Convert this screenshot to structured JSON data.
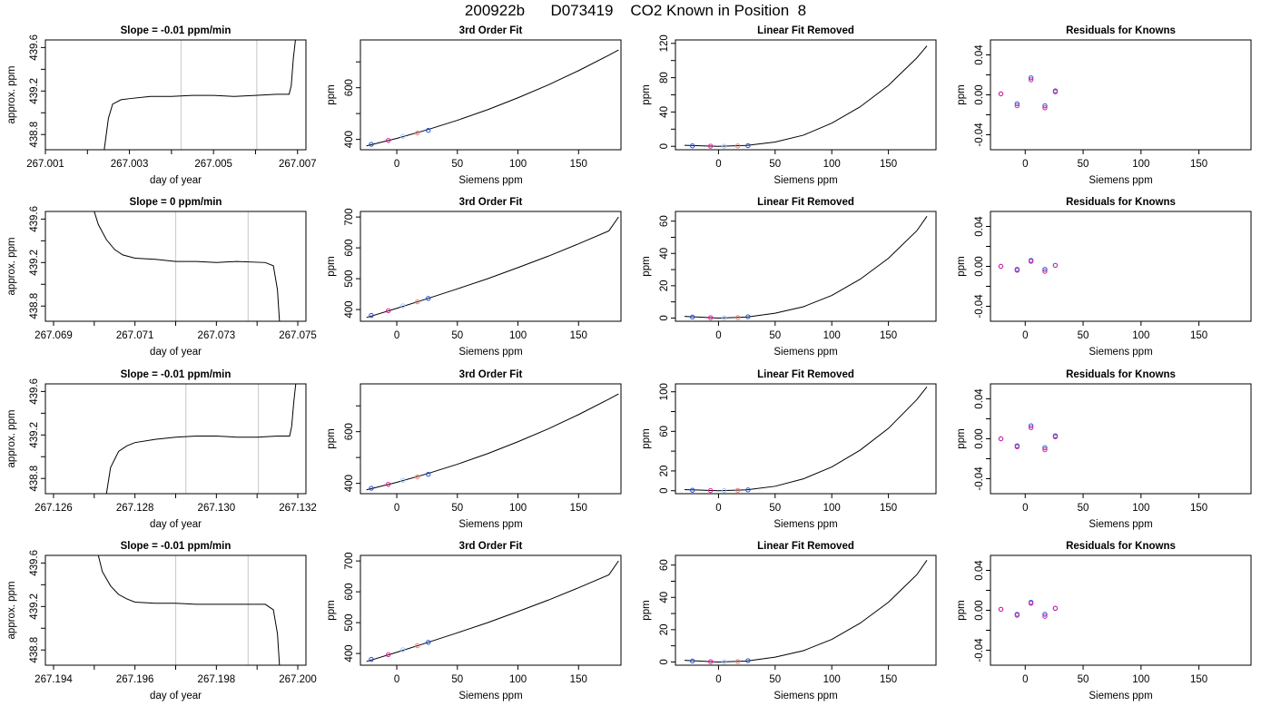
{
  "figure_title": "200922b      D073419    CO2 Known in Position  8",
  "colors": {
    "trace": "#000000",
    "window_line": "#cfcfcf",
    "point_blue": "#1f4fd8",
    "point_magenta": "#e0209a",
    "point_light": "#9ec8ff",
    "point_salmon": "#f08070"
  },
  "chart_data": [
    {
      "type": "line",
      "row": 1,
      "col": 1,
      "title": "Slope =  -0.01  ppm/min",
      "xlabel": "day of year",
      "ylabel": "approx. ppm",
      "xlim": [
        267.001,
        267.0072
      ],
      "ylim": [
        438.66,
        439.67
      ],
      "xticks": [
        267.001,
        267.002,
        267.003,
        267.004,
        267.005,
        267.006,
        267.007
      ],
      "xticklabels": [
        "267.001",
        "",
        "267.003",
        "",
        "267.005",
        "",
        "267.007"
      ],
      "yticks": [
        438.8,
        439.0,
        439.2,
        439.4,
        439.6
      ],
      "yticklabels": [
        "438.8",
        "",
        "439.2",
        "",
        "439.6"
      ],
      "vlines": [
        267.00423,
        267.00603
      ],
      "x": [
        267.0024,
        267.0025,
        267.0026,
        267.0028,
        267.003,
        267.0035,
        267.004,
        267.0045,
        267.005,
        267.0055,
        267.006,
        267.0065,
        267.0068,
        267.00685,
        267.0069,
        267.00695
      ],
      "y": [
        438.66,
        438.95,
        439.08,
        439.12,
        439.13,
        439.15,
        439.15,
        439.16,
        439.16,
        439.15,
        439.16,
        439.17,
        439.17,
        439.25,
        439.5,
        439.67
      ]
    },
    {
      "type": "line",
      "row": 1,
      "col": 2,
      "title": "3rd Order Fit",
      "xlabel": "Siemens ppm",
      "ylabel": "ppm",
      "xlim": [
        -30,
        185
      ],
      "ylim": [
        360,
        785
      ],
      "xticks": [
        0,
        50,
        100,
        150
      ],
      "xticklabels": [
        "0",
        "50",
        "100",
        "150"
      ],
      "yticks": [
        400,
        500,
        600,
        700
      ],
      "yticklabels": [
        "400",
        "",
        "600",
        ""
      ],
      "curve": {
        "x": [
          -25,
          0,
          25,
          50,
          75,
          100,
          125,
          150,
          175,
          183
        ],
        "y": [
          375,
          404,
          437,
          474,
          515,
          561,
          611,
          666,
          726,
          746
        ]
      },
      "points": {
        "x": [
          -21,
          -7,
          5,
          17,
          26
        ],
        "y": [
          381,
          396,
          412,
          425,
          435
        ]
      }
    },
    {
      "type": "line",
      "row": 1,
      "col": 3,
      "title": "Linear Fit Removed",
      "xlabel": "Siemens ppm",
      "ylabel": "ppm",
      "xlim": [
        -38,
        192
      ],
      "ylim": [
        -4,
        124
      ],
      "xticks": [
        0,
        50,
        100,
        150
      ],
      "xticklabels": [
        "0",
        "50",
        "100",
        "150"
      ],
      "yticks": [
        0,
        20,
        40,
        60,
        80,
        100,
        120
      ],
      "yticklabels": [
        "0",
        "",
        "40",
        "",
        "80",
        "",
        "120"
      ],
      "curve": {
        "x": [
          -30,
          0,
          25,
          50,
          75,
          100,
          125,
          150,
          175,
          184
        ],
        "y": [
          1.2,
          0,
          1,
          5,
          13,
          27,
          46,
          71,
          103,
          117
        ]
      },
      "points": {
        "x": [
          -23,
          -7,
          5,
          17,
          26
        ],
        "y": [
          0.5,
          0.2,
          0.1,
          0.4,
          0.8
        ]
      }
    },
    {
      "type": "scatter",
      "row": 1,
      "col": 4,
      "title": "Residuals for Knowns",
      "xlabel": "Siemens ppm",
      "ylabel": "ppm",
      "xlim": [
        -30,
        195
      ],
      "ylim": [
        -0.055,
        0.055
      ],
      "xticks": [
        0,
        50,
        100,
        150
      ],
      "xticklabels": [
        "0",
        "50",
        "100",
        "150"
      ],
      "yticks": [
        -0.04,
        -0.02,
        0.0,
        0.02,
        0.04
      ],
      "yticklabels": [
        "-0.04",
        "",
        "0.00",
        "",
        "0.04"
      ],
      "points": {
        "x": [
          -21,
          -21,
          -7,
          -7,
          5,
          5,
          17,
          17,
          26,
          26
        ],
        "y": [
          0.001,
          0.001,
          -0.009,
          -0.011,
          0.017,
          0.015,
          -0.011,
          -0.013,
          0.004,
          0.003
        ]
      }
    },
    {
      "type": "line",
      "row": 2,
      "col": 1,
      "title": "Slope =  0  ppm/min",
      "xlabel": "day of year",
      "ylabel": "approx. ppm",
      "xlim": [
        267.0688,
        267.0752
      ],
      "ylim": [
        438.66,
        439.67
      ],
      "xticks": [
        267.069,
        267.07,
        267.071,
        267.072,
        267.073,
        267.074,
        267.075
      ],
      "xticklabels": [
        "267.069",
        "",
        "267.071",
        "",
        "267.073",
        "",
        "267.075"
      ],
      "yticks": [
        438.8,
        439.0,
        439.2,
        439.4,
        439.6
      ],
      "yticklabels": [
        "438.8",
        "",
        "439.2",
        "",
        "439.6"
      ],
      "vlines": [
        267.072,
        267.07378
      ],
      "x": [
        267.07,
        267.0701,
        267.0703,
        267.0705,
        267.0707,
        267.071,
        267.0715,
        267.072,
        267.0725,
        267.073,
        267.0735,
        267.0742,
        267.0744,
        267.0745,
        267.07455
      ],
      "y": [
        439.67,
        439.55,
        439.41,
        439.32,
        439.27,
        439.24,
        439.23,
        439.21,
        439.21,
        439.2,
        439.21,
        439.2,
        439.17,
        438.95,
        438.66
      ]
    },
    {
      "type": "line",
      "row": 2,
      "col": 2,
      "title": "3rd Order Fit",
      "xlabel": "Siemens ppm",
      "ylabel": "ppm",
      "xlim": [
        -30,
        185
      ],
      "ylim": [
        362,
        718
      ],
      "xticks": [
        0,
        50,
        100,
        150
      ],
      "xticklabels": [
        "0",
        "50",
        "100",
        "150"
      ],
      "yticks": [
        400,
        500,
        600,
        700
      ],
      "yticklabels": [
        "400",
        "500",
        "600",
        "700"
      ],
      "curve": {
        "x": [
          -25,
          0,
          25,
          50,
          75,
          100,
          125,
          150,
          175,
          183
        ],
        "y": [
          374,
          404,
          435,
          467,
          500,
          536,
          573,
          613,
          655,
          700
        ]
      },
      "points": {
        "x": [
          -21,
          -7,
          5,
          17,
          26
        ],
        "y": [
          381,
          396,
          412,
          425,
          436
        ]
      }
    },
    {
      "type": "line",
      "row": 2,
      "col": 3,
      "title": "Linear Fit Removed",
      "xlabel": "Siemens ppm",
      "ylabel": "ppm",
      "xlim": [
        -38,
        192
      ],
      "ylim": [
        -2,
        66
      ],
      "xticks": [
        0,
        50,
        100,
        150
      ],
      "xticklabels": [
        "0",
        "50",
        "100",
        "150"
      ],
      "yticks": [
        0,
        10,
        20,
        30,
        40,
        50,
        60
      ],
      "yticklabels": [
        "0",
        "",
        "20",
        "",
        "40",
        "",
        "60"
      ],
      "curve": {
        "x": [
          -30,
          0,
          25,
          50,
          75,
          100,
          125,
          150,
          175,
          184
        ],
        "y": [
          1,
          0,
          0.6,
          3,
          7,
          14,
          24,
          37,
          54,
          63
        ]
      },
      "points": {
        "x": [
          -23,
          -7,
          5,
          17,
          26
        ],
        "y": [
          0.6,
          0.2,
          0.1,
          0.3,
          0.8
        ]
      }
    },
    {
      "type": "scatter",
      "row": 2,
      "col": 4,
      "title": "Residuals for Knowns",
      "xlabel": "Siemens ppm",
      "ylabel": "ppm",
      "xlim": [
        -30,
        195
      ],
      "ylim": [
        -0.055,
        0.055
      ],
      "xticks": [
        0,
        50,
        100,
        150
      ],
      "xticklabels": [
        "0",
        "50",
        "100",
        "150"
      ],
      "yticks": [
        -0.04,
        -0.02,
        0.0,
        0.02,
        0.04
      ],
      "yticklabels": [
        "-0.04",
        "",
        "0.00",
        "",
        "0.04"
      ],
      "points": {
        "x": [
          -21,
          -21,
          -7,
          -7,
          5,
          5,
          17,
          17,
          26,
          26
        ],
        "y": [
          0.0,
          0.0,
          -0.003,
          -0.004,
          0.006,
          0.005,
          -0.003,
          -0.005,
          0.001,
          0.001
        ]
      }
    },
    {
      "type": "line",
      "row": 3,
      "col": 1,
      "title": "Slope =  -0.01  ppm/min",
      "xlabel": "day of year",
      "ylabel": "approx. ppm",
      "xlim": [
        267.1258,
        267.1322
      ],
      "ylim": [
        438.66,
        439.67
      ],
      "xticks": [
        267.126,
        267.127,
        267.128,
        267.129,
        267.13,
        267.131,
        267.132
      ],
      "xticklabels": [
        "267.126",
        "",
        "267.128",
        "",
        "267.130",
        "",
        "267.132"
      ],
      "yticks": [
        438.8,
        439.0,
        439.2,
        439.4,
        439.6
      ],
      "yticklabels": [
        "438.8",
        "",
        "439.2",
        "",
        "439.6"
      ],
      "vlines": [
        267.12925,
        267.13103
      ],
      "x": [
        267.1273,
        267.1274,
        267.1276,
        267.1278,
        267.128,
        267.1285,
        267.129,
        267.1295,
        267.13,
        267.1305,
        267.131,
        267.1315,
        267.1318,
        267.13185,
        267.1319,
        267.13195
      ],
      "y": [
        438.66,
        438.9,
        439.05,
        439.1,
        439.13,
        439.16,
        439.18,
        439.19,
        439.19,
        439.18,
        439.18,
        439.19,
        439.19,
        439.28,
        439.5,
        439.67
      ]
    },
    {
      "type": "line",
      "row": 3,
      "col": 2,
      "title": "3rd Order Fit",
      "xlabel": "Siemens ppm",
      "ylabel": "ppm",
      "xlim": [
        -30,
        185
      ],
      "ylim": [
        360,
        785
      ],
      "xticks": [
        0,
        50,
        100,
        150
      ],
      "xticklabels": [
        "0",
        "50",
        "100",
        "150"
      ],
      "yticks": [
        400,
        500,
        600,
        700
      ],
      "yticklabels": [
        "400",
        "",
        "600",
        ""
      ],
      "curve": {
        "x": [
          -25,
          0,
          25,
          50,
          75,
          100,
          125,
          150,
          175,
          183
        ],
        "y": [
          375,
          404,
          437,
          474,
          515,
          561,
          611,
          666,
          726,
          746
        ]
      },
      "points": {
        "x": [
          -21,
          -7,
          5,
          17,
          26
        ],
        "y": [
          381,
          396,
          412,
          425,
          435
        ]
      }
    },
    {
      "type": "line",
      "row": 3,
      "col": 3,
      "title": "Linear Fit Removed",
      "xlabel": "Siemens ppm",
      "ylabel": "ppm",
      "xlim": [
        -38,
        192
      ],
      "ylim": [
        -3,
        108
      ],
      "xticks": [
        0,
        50,
        100,
        150
      ],
      "xticklabels": [
        "0",
        "50",
        "100",
        "150"
      ],
      "yticks": [
        0,
        20,
        40,
        60,
        80,
        100
      ],
      "yticklabels": [
        "0",
        "20",
        "",
        "60",
        "",
        "100"
      ],
      "curve": {
        "x": [
          -30,
          0,
          25,
          50,
          75,
          100,
          125,
          150,
          175,
          184
        ],
        "y": [
          1.1,
          0,
          0.9,
          4.5,
          12,
          24,
          41,
          63,
          92,
          105
        ]
      },
      "points": {
        "x": [
          -23,
          -7,
          5,
          17,
          26
        ],
        "y": [
          0.5,
          0.2,
          0.1,
          0.4,
          0.8
        ]
      }
    },
    {
      "type": "scatter",
      "row": 3,
      "col": 4,
      "title": "Residuals for Knowns",
      "xlabel": "Siemens ppm",
      "ylabel": "ppm",
      "xlim": [
        -30,
        195
      ],
      "ylim": [
        -0.055,
        0.055
      ],
      "xticks": [
        0,
        50,
        100,
        150
      ],
      "xticklabels": [
        "0",
        "50",
        "100",
        "150"
      ],
      "yticks": [
        -0.04,
        -0.02,
        0.0,
        0.02,
        0.04
      ],
      "yticklabels": [
        "-0.04",
        "",
        "0.00",
        "",
        "0.04"
      ],
      "points": {
        "x": [
          -21,
          -21,
          -7,
          -7,
          5,
          5,
          17,
          17,
          26,
          26
        ],
        "y": [
          0.0,
          0.0,
          -0.007,
          -0.008,
          0.013,
          0.011,
          -0.009,
          -0.011,
          0.003,
          0.002
        ]
      }
    },
    {
      "type": "line",
      "row": 4,
      "col": 1,
      "title": "Slope =  -0.01  ppm/min",
      "xlabel": "day of year",
      "ylabel": "approx. ppm",
      "xlim": [
        267.1938,
        267.2002
      ],
      "ylim": [
        438.66,
        439.67
      ],
      "xticks": [
        267.194,
        267.195,
        267.196,
        267.197,
        267.198,
        267.199,
        267.2
      ],
      "xticklabels": [
        "267.194",
        "",
        "267.196",
        "",
        "267.198",
        "",
        "267.200"
      ],
      "yticks": [
        438.8,
        439.0,
        439.2,
        439.4,
        439.6
      ],
      "yticklabels": [
        "438.8",
        "",
        "439.2",
        "",
        "439.6"
      ],
      "vlines": [
        267.197,
        267.19878
      ],
      "x": [
        267.1951,
        267.1952,
        267.1954,
        267.1956,
        267.1958,
        267.196,
        267.1965,
        267.197,
        267.1975,
        267.198,
        267.1985,
        267.1992,
        267.1994,
        267.1995,
        267.19955
      ],
      "y": [
        439.67,
        439.52,
        439.39,
        439.31,
        439.27,
        439.24,
        439.23,
        439.23,
        439.22,
        439.22,
        439.22,
        439.22,
        439.17,
        438.95,
        438.66
      ]
    },
    {
      "type": "line",
      "row": 4,
      "col": 2,
      "title": "3rd Order Fit",
      "xlabel": "Siemens ppm",
      "ylabel": "ppm",
      "xlim": [
        -30,
        185
      ],
      "ylim": [
        362,
        718
      ],
      "xticks": [
        0,
        50,
        100,
        150
      ],
      "xticklabels": [
        "0",
        "50",
        "100",
        "150"
      ],
      "yticks": [
        400,
        500,
        600,
        700
      ],
      "yticklabels": [
        "400",
        "500",
        "600",
        "700"
      ],
      "curve": {
        "x": [
          -25,
          0,
          25,
          50,
          75,
          100,
          125,
          150,
          175,
          183
        ],
        "y": [
          374,
          404,
          435,
          467,
          500,
          536,
          573,
          613,
          655,
          700
        ]
      },
      "points": {
        "x": [
          -21,
          -7,
          5,
          17,
          26
        ],
        "y": [
          381,
          396,
          412,
          425,
          436
        ]
      }
    },
    {
      "type": "line",
      "row": 4,
      "col": 3,
      "title": "Linear Fit Removed",
      "xlabel": "Siemens ppm",
      "ylabel": "ppm",
      "xlim": [
        -38,
        192
      ],
      "ylim": [
        -2,
        66
      ],
      "xticks": [
        0,
        50,
        100,
        150
      ],
      "xticklabels": [
        "0",
        "50",
        "100",
        "150"
      ],
      "yticks": [
        0,
        10,
        20,
        30,
        40,
        50,
        60
      ],
      "yticklabels": [
        "0",
        "",
        "20",
        "",
        "40",
        "",
        "60"
      ],
      "curve": {
        "x": [
          -30,
          0,
          25,
          50,
          75,
          100,
          125,
          150,
          175,
          184
        ],
        "y": [
          1,
          0,
          0.6,
          3,
          7,
          14,
          24,
          37,
          54,
          63
        ]
      },
      "points": {
        "x": [
          -23,
          -7,
          5,
          17,
          26
        ],
        "y": [
          0.6,
          0.2,
          0.1,
          0.3,
          0.8
        ]
      }
    },
    {
      "type": "scatter",
      "row": 4,
      "col": 4,
      "title": "Residuals for Knowns",
      "xlabel": "Siemens ppm",
      "ylabel": "ppm",
      "xlim": [
        -30,
        195
      ],
      "ylim": [
        -0.055,
        0.055
      ],
      "xticks": [
        0,
        50,
        100,
        150
      ],
      "xticklabels": [
        "0",
        "50",
        "100",
        "150"
      ],
      "yticks": [
        -0.04,
        -0.02,
        0.0,
        0.02,
        0.04
      ],
      "yticklabels": [
        "-0.04",
        "",
        "0.00",
        "",
        "0.04"
      ],
      "points": {
        "x": [
          -21,
          -21,
          -7,
          -7,
          5,
          5,
          17,
          17,
          26,
          26
        ],
        "y": [
          0.001,
          0.001,
          -0.004,
          -0.005,
          0.008,
          0.007,
          -0.004,
          -0.006,
          0.002,
          0.002
        ]
      }
    }
  ]
}
